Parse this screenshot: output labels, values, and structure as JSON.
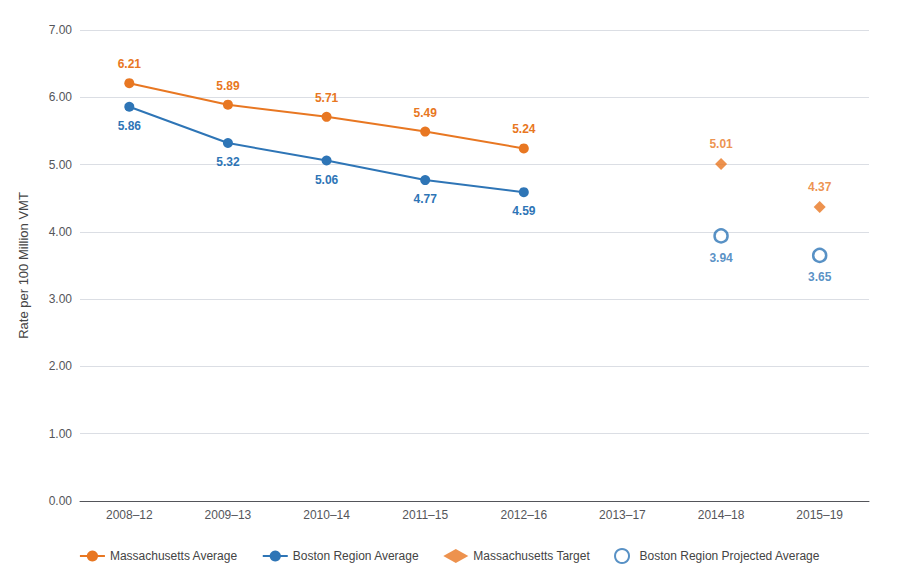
{
  "chart_data": {
    "type": "line",
    "y_label": "Rate per 100 Million VMT",
    "categories": [
      "2008–12",
      "2009–13",
      "2010–14",
      "2011–15",
      "2012–16",
      "2013–17",
      "2014–18",
      "2015–19"
    ],
    "series": [
      {
        "name": "Massachusetts Average",
        "type": "line",
        "color": "#E87722",
        "marker": "circle",
        "line_style": "solid",
        "values": [
          6.21,
          5.89,
          5.71,
          5.49,
          5.24,
          null,
          null,
          null
        ]
      },
      {
        "name": "Boston Region Average",
        "type": "line",
        "color": "#2E75B6",
        "marker": "circle",
        "line_style": "solid",
        "values": [
          5.86,
          5.32,
          5.06,
          4.77,
          4.59,
          null,
          null,
          null
        ]
      },
      {
        "name": "Massachusetts Target",
        "type": "scatter",
        "color": "#E87722",
        "marker": "diamond",
        "line_style": "none",
        "values": [
          null,
          null,
          null,
          null,
          null,
          null,
          5.01,
          4.37
        ]
      },
      {
        "name": "Boston Region Projected Average",
        "type": "scatter",
        "color": "#2E75B6",
        "marker": "open_circle",
        "line_style": "none",
        "values": [
          null,
          null,
          null,
          null,
          null,
          null,
          3.94,
          3.65
        ]
      }
    ],
    "ylim": [
      0.0,
      7.0
    ],
    "yticks": [
      {
        "value": 0,
        "label": "0.00"
      },
      {
        "value": 1,
        "label": "1.00"
      },
      {
        "value": 2,
        "label": "2.00"
      },
      {
        "value": 3,
        "label": "3.00"
      },
      {
        "value": 4,
        "label": "4.00"
      },
      {
        "value": 5,
        "label": "5.00"
      },
      {
        "value": 6,
        "label": "6.00"
      },
      {
        "value": 7,
        "label": "7.00"
      }
    ],
    "grid": true,
    "legend": "bottom",
    "data_labels": true
  }
}
